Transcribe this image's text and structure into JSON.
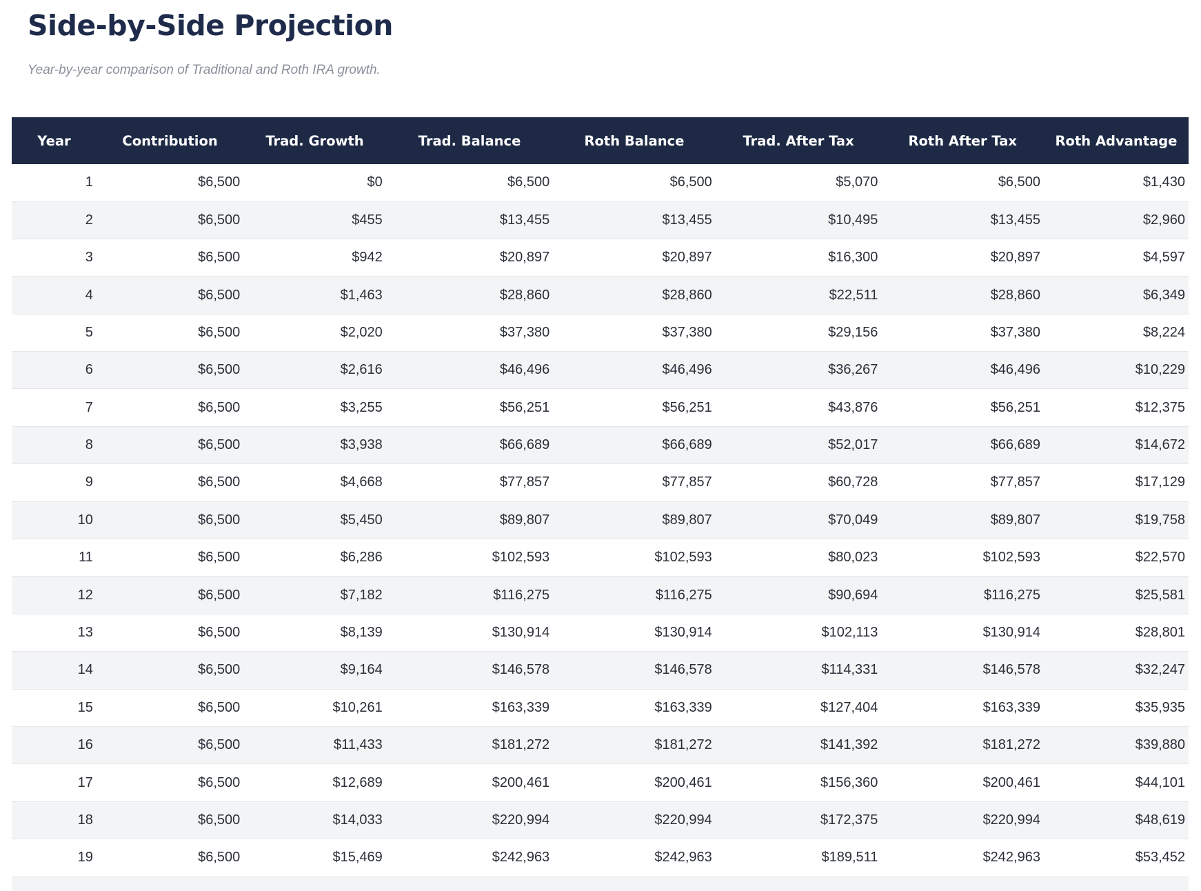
{
  "page": {
    "title": "Side-by-Side Projection",
    "subtitle": "Year-by-year comparison of Traditional and Roth IRA growth."
  },
  "colors": {
    "page_bg": "#ffffff",
    "title_text": "#1e2b4a",
    "subtitle_text": "#8a909c",
    "header_bg": "#1e2a45",
    "header_text": "#ffffff",
    "body_text": "#2a2f38",
    "stripe_bg": "#f3f4f6",
    "row_border": "#e5e7eb"
  },
  "chart_data": {
    "type": "table",
    "title": "Side-by-Side Projection",
    "subtitle": "Year-by-year comparison of Traditional and Roth IRA growth.",
    "columns": [
      "Year",
      "Contribution",
      "Trad. Growth",
      "Trad. Balance",
      "Roth Balance",
      "Trad. After Tax",
      "Roth After Tax",
      "Roth Advantage"
    ],
    "rows": [
      [
        "1",
        "$6,500",
        "$0",
        "$6,500",
        "$6,500",
        "$5,070",
        "$6,500",
        "$1,430"
      ],
      [
        "2",
        "$6,500",
        "$455",
        "$13,455",
        "$13,455",
        "$10,495",
        "$13,455",
        "$2,960"
      ],
      [
        "3",
        "$6,500",
        "$942",
        "$20,897",
        "$20,897",
        "$16,300",
        "$20,897",
        "$4,597"
      ],
      [
        "4",
        "$6,500",
        "$1,463",
        "$28,860",
        "$28,860",
        "$22,511",
        "$28,860",
        "$6,349"
      ],
      [
        "5",
        "$6,500",
        "$2,020",
        "$37,380",
        "$37,380",
        "$29,156",
        "$37,380",
        "$8,224"
      ],
      [
        "6",
        "$6,500",
        "$2,616",
        "$46,496",
        "$46,496",
        "$36,267",
        "$46,496",
        "$10,229"
      ],
      [
        "7",
        "$6,500",
        "$3,255",
        "$56,251",
        "$56,251",
        "$43,876",
        "$56,251",
        "$12,375"
      ],
      [
        "8",
        "$6,500",
        "$3,938",
        "$66,689",
        "$66,689",
        "$52,017",
        "$66,689",
        "$14,672"
      ],
      [
        "9",
        "$6,500",
        "$4,668",
        "$77,857",
        "$77,857",
        "$60,728",
        "$77,857",
        "$17,129"
      ],
      [
        "10",
        "$6,500",
        "$5,450",
        "$89,807",
        "$89,807",
        "$70,049",
        "$89,807",
        "$19,758"
      ],
      [
        "11",
        "$6,500",
        "$6,286",
        "$102,593",
        "$102,593",
        "$80,023",
        "$102,593",
        "$22,570"
      ],
      [
        "12",
        "$6,500",
        "$7,182",
        "$116,275",
        "$116,275",
        "$90,694",
        "$116,275",
        "$25,581"
      ],
      [
        "13",
        "$6,500",
        "$8,139",
        "$130,914",
        "$130,914",
        "$102,113",
        "$130,914",
        "$28,801"
      ],
      [
        "14",
        "$6,500",
        "$9,164",
        "$146,578",
        "$146,578",
        "$114,331",
        "$146,578",
        "$32,247"
      ],
      [
        "15",
        "$6,500",
        "$10,261",
        "$163,339",
        "$163,339",
        "$127,404",
        "$163,339",
        "$35,935"
      ],
      [
        "16",
        "$6,500",
        "$11,433",
        "$181,272",
        "$181,272",
        "$141,392",
        "$181,272",
        "$39,880"
      ],
      [
        "17",
        "$6,500",
        "$12,689",
        "$200,461",
        "$200,461",
        "$156,360",
        "$200,461",
        "$44,101"
      ],
      [
        "18",
        "$6,500",
        "$14,033",
        "$220,994",
        "$220,994",
        "$172,375",
        "$220,994",
        "$48,619"
      ],
      [
        "19",
        "$6,500",
        "$15,469",
        "$242,963",
        "$242,963",
        "$189,511",
        "$242,963",
        "$53,452"
      ]
    ],
    "layout": {
      "striped_rows": true,
      "stripe_on": "even",
      "partial_clipped_row_at_bottom": true
    }
  }
}
